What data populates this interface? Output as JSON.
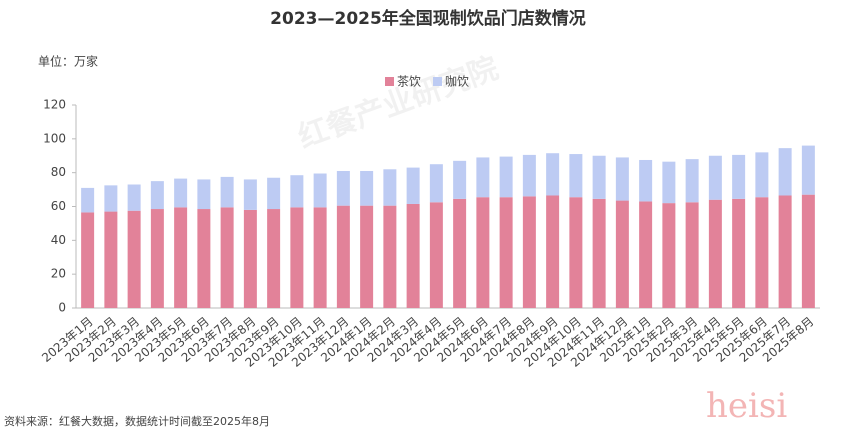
{
  "chart_data": {
    "type": "bar",
    "stacked": true,
    "title": "2023—2025年全国现制饮品门店数情况",
    "unit_label": "单位：万家",
    "source": "资料来源：红餐大数据，数据统计时间截至2025年8月",
    "watermark": "红餐产业研究院",
    "corner_mark": "heisi",
    "categories": [
      "2023年1月",
      "2023年2月",
      "2023年3月",
      "2023年4月",
      "2023年5月",
      "2023年6月",
      "2023年7月",
      "2023年8月",
      "2023年9月",
      "2023年10月",
      "2023年11月",
      "2023年12月",
      "2024年1月",
      "2024年2月",
      "2024年3月",
      "2024年4月",
      "2024年5月",
      "2024年6月",
      "2024年7月",
      "2024年8月",
      "2024年9月",
      "2024年10月",
      "2024年11月",
      "2024年12月",
      "2025年1月",
      "2025年2月",
      "2025年3月",
      "2025年4月",
      "2025年5月",
      "2025年6月",
      "2025年7月",
      "2025年8月"
    ],
    "series": [
      {
        "name": "茶饮",
        "color": "#e28299",
        "values": [
          56.5,
          57,
          57.5,
          58.5,
          59.5,
          58.5,
          59.5,
          58,
          58.5,
          59.5,
          59.5,
          60.5,
          60.5,
          60.5,
          61.5,
          62.5,
          64.5,
          65.5,
          65.5,
          66,
          66.5,
          65.5,
          64.5,
          63.5,
          63,
          62,
          62.5,
          64,
          64.5,
          65.5,
          66.5,
          67
        ]
      },
      {
        "name": "咖饮",
        "color": "#bdcbf3",
        "values": [
          14.5,
          15.5,
          15.5,
          16.5,
          17,
          17.5,
          18,
          18,
          18.5,
          19,
          20,
          20.5,
          20.5,
          21.5,
          21.5,
          22.5,
          22.5,
          23.5,
          24,
          24.5,
          25,
          25.5,
          25.5,
          25.5,
          24.5,
          24.5,
          25.5,
          26,
          26,
          26.5,
          28,
          29
        ]
      }
    ],
    "ylim": [
      0,
      120
    ],
    "yticks": [
      0,
      20,
      40,
      60,
      80,
      100,
      120
    ],
    "legend": "top",
    "grid": false
  }
}
